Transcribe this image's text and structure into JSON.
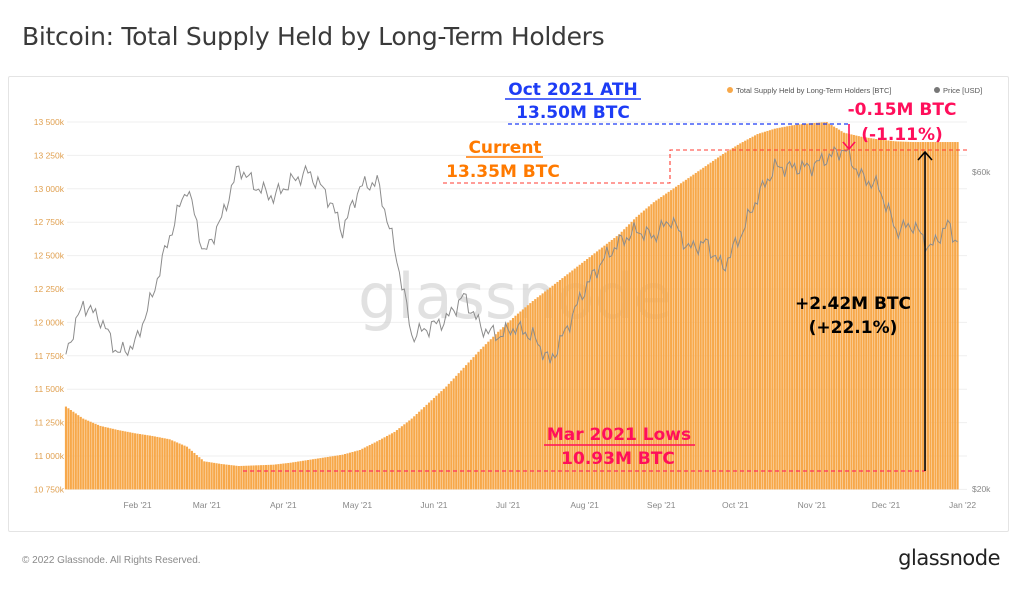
{
  "title": "Bitcoin: Total Supply Held by Long-Term Holders",
  "footer": "© 2022 Glassnode. All Rights Reserved.",
  "logo": "glassnode",
  "watermark": "glassnode",
  "colors": {
    "supply": "#f7a84a",
    "price": "#8c8c8c",
    "ath": "#1d3cf5",
    "pink": "#ff0f5b",
    "current": "#ff7a00",
    "gain": "#000000"
  },
  "annotations": {
    "ath_title": "Oct 2021 ATH",
    "ath_value": "13.50M BTC",
    "drop_value": "-0.15M BTC",
    "drop_pct": "(-1.11%)",
    "current_title": "Current",
    "current_value": "13.35M BTC",
    "lows_title": "Mar 2021 Lows",
    "lows_value": "10.93M BTC",
    "gain_value": "+2.42M BTC",
    "gain_pct": "(+22.1%)"
  },
  "chart_data": {
    "type": "bar+line",
    "legend": {
      "position": "top-right",
      "items": [
        "Total Supply Held by Long-Term Holders [BTC]",
        "Price [USD]"
      ]
    },
    "y_left": {
      "ticks": [
        "10 750k",
        "11 000k",
        "11 250k",
        "11 500k",
        "11 750k",
        "12 000k",
        "12 250k",
        "12 500k",
        "12 750k",
        "13 000k",
        "13 250k",
        "13 500k"
      ],
      "range": [
        10750,
        13500
      ],
      "unit": "k BTC"
    },
    "y_right": {
      "ticks": [
        "$20k",
        "$60k"
      ],
      "scale": "log",
      "tick_values": [
        20,
        60
      ],
      "unit": "k USD"
    },
    "x_ticks": [
      {
        "label": "Feb '21",
        "date": "2021-02-01"
      },
      {
        "label": "Mar '21",
        "date": "2021-03-01"
      },
      {
        "label": "Apr '21",
        "date": "2021-04-01"
      },
      {
        "label": "May '21",
        "date": "2021-05-01"
      },
      {
        "label": "Jun '21",
        "date": "2021-06-01"
      },
      {
        "label": "Jul '21",
        "date": "2021-07-01"
      },
      {
        "label": "Aug '21",
        "date": "2021-08-01"
      },
      {
        "label": "Sep '21",
        "date": "2021-09-01"
      },
      {
        "label": "Oct '21",
        "date": "2021-10-01"
      },
      {
        "label": "Nov '21",
        "date": "2021-11-01"
      },
      {
        "label": "Dec '21",
        "date": "2021-12-01"
      },
      {
        "label": "Jan '22",
        "date": "2022-01-01"
      }
    ],
    "grid": true,
    "dates": [
      "2021-01-03",
      "2021-01-10",
      "2021-01-17",
      "2021-01-24",
      "2021-01-31",
      "2021-02-07",
      "2021-02-14",
      "2021-02-21",
      "2021-02-28",
      "2021-03-07",
      "2021-03-14",
      "2021-03-21",
      "2021-03-28",
      "2021-04-04",
      "2021-04-11",
      "2021-04-18",
      "2021-04-25",
      "2021-05-02",
      "2021-05-09",
      "2021-05-16",
      "2021-05-23",
      "2021-05-30",
      "2021-06-06",
      "2021-06-13",
      "2021-06-20",
      "2021-06-27",
      "2021-07-04",
      "2021-07-11",
      "2021-07-18",
      "2021-07-25",
      "2021-08-01",
      "2021-08-08",
      "2021-08-15",
      "2021-08-22",
      "2021-08-29",
      "2021-09-05",
      "2021-09-12",
      "2021-09-19",
      "2021-09-26",
      "2021-10-03",
      "2021-10-10",
      "2021-10-17",
      "2021-10-24",
      "2021-10-31",
      "2021-11-07",
      "2021-11-14",
      "2021-11-21",
      "2021-11-28",
      "2021-12-05",
      "2021-12-12",
      "2021-12-19",
      "2021-12-26",
      "2021-12-30"
    ],
    "series": [
      {
        "name": "Total Supply Held by Long-Term Holders [BTC]",
        "type": "bar",
        "axis": "left",
        "values": [
          11370,
          11280,
          11225,
          11195,
          11170,
          11150,
          11125,
          11070,
          10960,
          10940,
          10925,
          10930,
          10935,
          10950,
          10970,
          10990,
          11010,
          11045,
          11110,
          11180,
          11280,
          11400,
          11520,
          11660,
          11800,
          11930,
          12050,
          12160,
          12260,
          12360,
          12460,
          12560,
          12660,
          12790,
          12900,
          12990,
          13080,
          13170,
          13260,
          13340,
          13410,
          13450,
          13475,
          13490,
          13500,
          13420,
          13390,
          13370,
          13355,
          13350,
          13350,
          13350,
          13350
        ]
      },
      {
        "name": "Price [USD]",
        "type": "line",
        "axis": "right",
        "values": [
          32,
          38,
          36,
          32,
          33,
          39,
          48,
          57,
          45,
          51,
          61,
          57,
          55,
          58,
          60,
          56,
          49,
          57,
          58,
          46,
          34,
          35,
          36,
          39,
          35,
          34,
          35,
          34,
          31,
          35,
          40,
          44,
          47,
          49,
          48,
          51,
          46,
          47,
          43,
          48,
          55,
          61,
          61,
          61,
          63,
          65,
          59,
          57,
          49,
          50,
          46,
          50,
          47
        ]
      }
    ]
  }
}
